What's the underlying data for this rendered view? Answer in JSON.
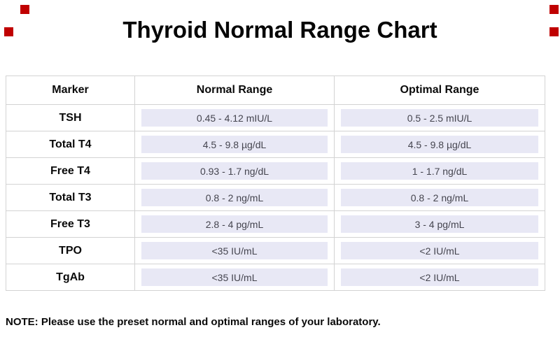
{
  "title": "Thyroid Normal Range Chart",
  "note": "NOTE: Please use the preset normal and optimal ranges of your laboratory.",
  "table": {
    "headers": {
      "marker": "Marker",
      "normal": "Normal Range",
      "optimal": "Optimal Range"
    },
    "rows": [
      {
        "marker": "TSH",
        "normal": "0.45 - 4.12 mIU/L",
        "optimal": "0.5 - 2.5 mIU/L"
      },
      {
        "marker": "Total T4",
        "normal": "4.5 - 9.8 µg/dL",
        "optimal": "4.5 - 9.8 µg/dL"
      },
      {
        "marker": "Free T4",
        "normal": "0.93 - 1.7 ng/dL",
        "optimal": "1 - 1.7 ng/dL"
      },
      {
        "marker": "Total T3",
        "normal": "0.8 - 2 ng/mL",
        "optimal": "0.8 - 2 ng/mL"
      },
      {
        "marker": "Free T3",
        "normal": "2.8 - 4 pg/mL",
        "optimal": "3 - 4 pg/mL"
      },
      {
        "marker": "TPO",
        "normal": "<35 IU/mL",
        "optimal": "<2 IU/mL"
      },
      {
        "marker": "TgAb",
        "normal": "<35 IU/mL",
        "optimal": "<2 IU/mL"
      }
    ]
  },
  "decorations": {
    "red_corner_squares": {
      "count": 4,
      "color": "#c00000"
    }
  },
  "colors": {
    "background": "#ffffff",
    "grid_line": "#d3d3d3",
    "value_band": "#e8e8f5",
    "value_text": "#45454f",
    "text_primary": "#0a0a0a",
    "corner_mark": "#c00000"
  },
  "chart_data": {
    "type": "table",
    "title": "Thyroid Normal Range Chart",
    "columns": [
      "Marker",
      "Normal Range",
      "Optimal Range"
    ],
    "rows": [
      [
        "TSH",
        "0.45 - 4.12 mIU/L",
        "0.5 - 2.5 mIU/L"
      ],
      [
        "Total T4",
        "4.5 - 9.8 µg/dL",
        "4.5 - 9.8 µg/dL"
      ],
      [
        "Free T4",
        "0.93 - 1.7 ng/dL",
        "1 - 1.7 ng/dL"
      ],
      [
        "Total T3",
        "0.8 - 2 ng/mL",
        "0.8 - 2 ng/mL"
      ],
      [
        "Free T3",
        "2.8 - 4 pg/mL",
        "3 - 4 pg/mL"
      ],
      [
        "TPO",
        "<35 IU/mL",
        "<2 IU/mL"
      ],
      [
        "TgAb",
        "<35 IU/mL",
        "<2 IU/mL"
      ]
    ],
    "note": "NOTE: Please use the preset normal and optimal ranges of your laboratory.",
    "layout": {
      "grid": "on",
      "value_cell_highlight": "#e8e8f5"
    }
  }
}
